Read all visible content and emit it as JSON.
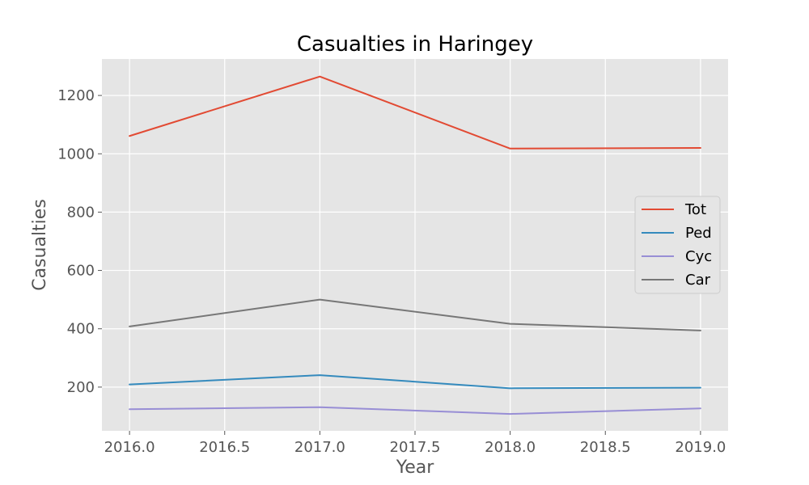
{
  "chart_data": {
    "type": "line",
    "title": "Casualties in Haringey",
    "xlabel": "Year",
    "ylabel": "Casualties",
    "xlim": [
      1985.85,
      2019.15
    ],
    "ylim": [
      50,
      1325
    ],
    "xlim_actual": [
      2015.855,
      2019.145
    ],
    "xticks": [
      2016.0,
      2016.5,
      2017.0,
      2017.5,
      2018.0,
      2018.5,
      2019.0
    ],
    "xtick_labels": [
      "2016.0",
      "2016.5",
      "2017.0",
      "2017.5",
      "2018.0",
      "2018.5",
      "2019.0"
    ],
    "yticks": [
      200,
      400,
      600,
      800,
      1000,
      1200
    ],
    "ytick_labels": [
      "200",
      "400",
      "600",
      "800",
      "1000",
      "1200"
    ],
    "x": [
      2016,
      2017,
      2018,
      2019
    ],
    "grid": true,
    "legend_position": "center-right",
    "series": [
      {
        "name": "Tot",
        "color": "#e24a33",
        "values": [
          1061,
          1265,
          1018,
          1020
        ]
      },
      {
        "name": "Ped",
        "color": "#348abd",
        "values": [
          209,
          241,
          196,
          198
        ]
      },
      {
        "name": "Cyc",
        "color": "#988ed5",
        "values": [
          124,
          131,
          108,
          127
        ]
      },
      {
        "name": "Car",
        "color": "#777777",
        "values": [
          408,
          500,
          417,
          394
        ]
      }
    ]
  }
}
